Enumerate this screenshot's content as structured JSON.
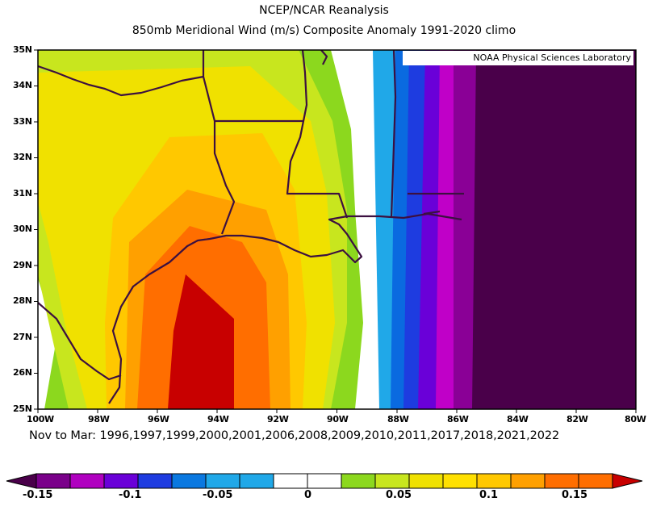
{
  "header": {
    "title": "NCEP/NCAR Reanalysis",
    "subtitle": "850mb Meridional Wind (m/s) Composite Anomaly 1991-2020 climo"
  },
  "credit": "NOAA Physical Sciences Laboratory",
  "footer": "Nov to Mar: 1996,1997,1999,2000,2001,2006,2008,2009,2010,2011,2017,2018,2021,2022",
  "map": {
    "lon_range": [
      -100,
      -80
    ],
    "lat_range": [
      25,
      35
    ],
    "lat_ticks": [
      "35N",
      "34N",
      "33N",
      "32N",
      "31N",
      "30N",
      "29N",
      "28N",
      "27N",
      "26N",
      "25N"
    ],
    "lon_ticks": [
      "100W",
      "98W",
      "96W",
      "94W",
      "92W",
      "90W",
      "88W",
      "86W",
      "84W",
      "82W",
      "80W"
    ]
  },
  "colorbar": {
    "colors": [
      "#4a004a",
      "#7a008a",
      "#b000c0",
      "#6a00d8",
      "#1e3ce0",
      "#0a78e0",
      "#20a8e8",
      "#ffffff",
      "#ffffff",
      "#8cd81e",
      "#c8e61e",
      "#f0e100",
      "#ffc800",
      "#ffa000",
      "#ff6e00",
      "#c80000"
    ],
    "labels": [
      "-0.15",
      "-0.1",
      "-0.05",
      "0",
      "0.05",
      "0.1",
      "0.15"
    ]
  }
}
